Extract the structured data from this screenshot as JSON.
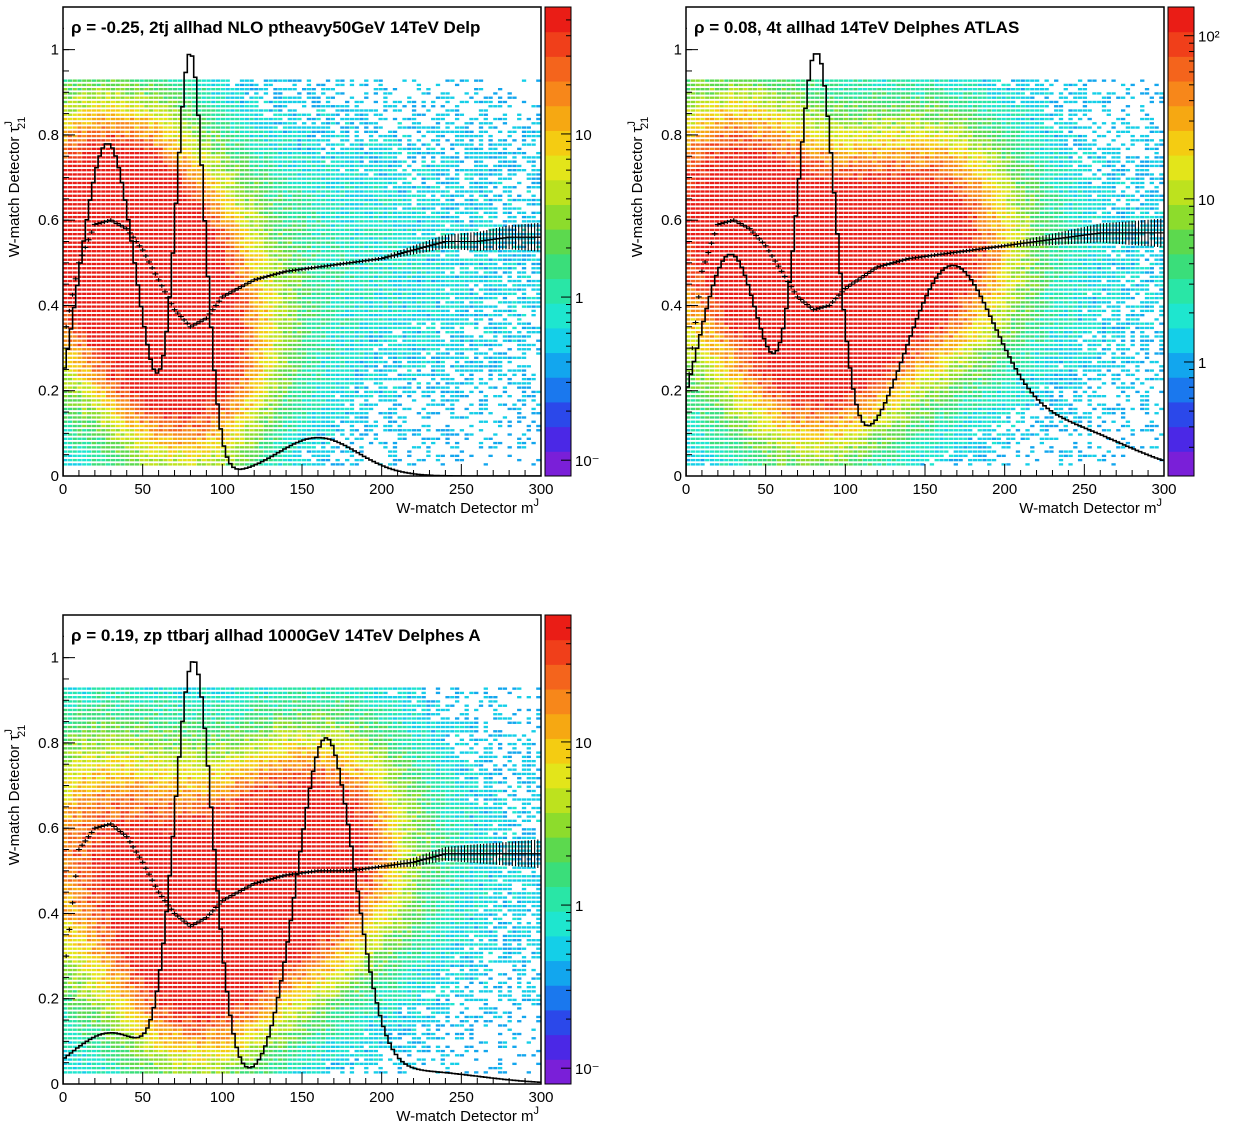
{
  "chart_data": [
    {
      "type": "heatmap",
      "title": "ρ = -0.25, 2tj allhad NLO ptheavy50GeV 14TeV Delp",
      "xlabel": "W-match Detector m",
      "xlabel_sup": "J",
      "ylabel": "W-match Detector τ",
      "ylabel_sup": "J",
      "ylabel_sub": "21",
      "xlim": [
        0,
        300
      ],
      "ylim": [
        0,
        1.1
      ],
      "x_ticks": [
        "0",
        "50",
        "100",
        "150",
        "200",
        "250",
        "300"
      ],
      "y_ticks": [
        "0",
        "0.2",
        "0.4",
        "0.6",
        "0.8",
        "1"
      ],
      "z_scale": "log",
      "z_range": [
        0.08,
        60
      ],
      "z_ticks": [
        "10⁻",
        "1",
        "10"
      ],
      "density_blobs": [
        {
          "x": 28,
          "y": 0.62,
          "amp": 1.0
        },
        {
          "x": 80,
          "y": 0.25,
          "amp": 0.9
        },
        {
          "x": 60,
          "y": 0.45,
          "amp": 0.55
        }
      ],
      "histogram_peaks": [
        {
          "x": 28,
          "h": 0.78,
          "w": 18
        },
        {
          "x": 80,
          "h": 0.98,
          "w": 9
        },
        {
          "x": 160,
          "h": 0.09,
          "w": 25
        }
      ],
      "profile": {
        "x": [
          2,
          10,
          20,
          30,
          40,
          50,
          60,
          70,
          80,
          90,
          100,
          120,
          140,
          160,
          180,
          200,
          220,
          240,
          260,
          280,
          300
        ],
        "y": [
          0.35,
          0.5,
          0.59,
          0.6,
          0.58,
          0.53,
          0.46,
          0.39,
          0.35,
          0.37,
          0.42,
          0.46,
          0.48,
          0.49,
          0.5,
          0.51,
          0.53,
          0.55,
          0.55,
          0.56,
          0.56
        ]
      }
    },
    {
      "type": "heatmap",
      "title": "ρ = 0.08, 4t allhad 14TeV Delphes ATLAS",
      "xlabel": "W-match Detector m",
      "xlabel_sup": "J",
      "ylabel": "W-match Detector τ",
      "ylabel_sup": "J",
      "ylabel_sub": "21",
      "xlim": [
        0,
        300
      ],
      "ylim": [
        0,
        1.1
      ],
      "x_ticks": [
        "0",
        "50",
        "100",
        "150",
        "200",
        "250",
        "300"
      ],
      "y_ticks": [
        "0",
        "0.2",
        "0.4",
        "0.6",
        "0.8",
        "1"
      ],
      "z_scale": "log",
      "z_range": [
        0.2,
        150
      ],
      "z_ticks": [
        "1",
        "10",
        "10²"
      ],
      "density_blobs": [
        {
          "x": 30,
          "y": 0.65,
          "amp": 0.9
        },
        {
          "x": 80,
          "y": 0.3,
          "amp": 0.95
        },
        {
          "x": 160,
          "y": 0.55,
          "amp": 0.85
        },
        {
          "x": 110,
          "y": 0.5,
          "amp": 0.6
        }
      ],
      "histogram_peaks": [
        {
          "x": 28,
          "h": 0.52,
          "w": 20
        },
        {
          "x": 82,
          "h": 0.98,
          "w": 12
        },
        {
          "x": 165,
          "h": 0.45,
          "w": 28
        },
        {
          "x": 230,
          "h": 0.12,
          "w": 45
        }
      ],
      "profile": {
        "x": [
          2,
          10,
          20,
          30,
          40,
          50,
          60,
          70,
          80,
          90,
          100,
          120,
          140,
          160,
          180,
          200,
          220,
          240,
          260,
          280,
          300
        ],
        "y": [
          0.24,
          0.48,
          0.59,
          0.6,
          0.58,
          0.54,
          0.48,
          0.42,
          0.39,
          0.4,
          0.44,
          0.49,
          0.51,
          0.52,
          0.53,
          0.54,
          0.55,
          0.56,
          0.57,
          0.57,
          0.57
        ]
      }
    },
    {
      "type": "heatmap",
      "title": "ρ = 0.19, zp ttbarj allhad 1000GeV 14TeV Delphes A",
      "xlabel": "W-match Detector m",
      "xlabel_sup": "J",
      "ylabel": "W-match Detector τ",
      "ylabel_sup": "J",
      "ylabel_sub": "21",
      "xlim": [
        0,
        300
      ],
      "ylim": [
        0,
        1.1
      ],
      "x_ticks": [
        "0",
        "50",
        "100",
        "150",
        "200",
        "250",
        "300"
      ],
      "y_ticks": [
        "0",
        "0.2",
        "0.4",
        "0.6",
        "0.8",
        "1"
      ],
      "z_scale": "log",
      "z_range": [
        0.08,
        60
      ],
      "z_ticks": [
        "10⁻",
        "1",
        "10"
      ],
      "density_blobs": [
        {
          "x": 82,
          "y": 0.28,
          "amp": 0.95
        },
        {
          "x": 165,
          "y": 0.56,
          "amp": 0.95
        },
        {
          "x": 30,
          "y": 0.58,
          "amp": 0.55
        },
        {
          "x": 120,
          "y": 0.45,
          "amp": 0.55
        }
      ],
      "histogram_peaks": [
        {
          "x": 30,
          "h": 0.12,
          "w": 25
        },
        {
          "x": 82,
          "h": 0.98,
          "w": 12
        },
        {
          "x": 165,
          "h": 0.8,
          "w": 18
        },
        {
          "x": 220,
          "h": 0.03,
          "w": 40
        }
      ],
      "profile": {
        "x": [
          2,
          10,
          20,
          30,
          40,
          50,
          60,
          70,
          80,
          90,
          100,
          120,
          140,
          160,
          180,
          200,
          220,
          240,
          260,
          280,
          300
        ],
        "y": [
          0.3,
          0.55,
          0.6,
          0.61,
          0.58,
          0.52,
          0.45,
          0.4,
          0.37,
          0.39,
          0.43,
          0.47,
          0.49,
          0.5,
          0.5,
          0.51,
          0.52,
          0.54,
          0.54,
          0.54,
          0.54
        ]
      }
    }
  ]
}
